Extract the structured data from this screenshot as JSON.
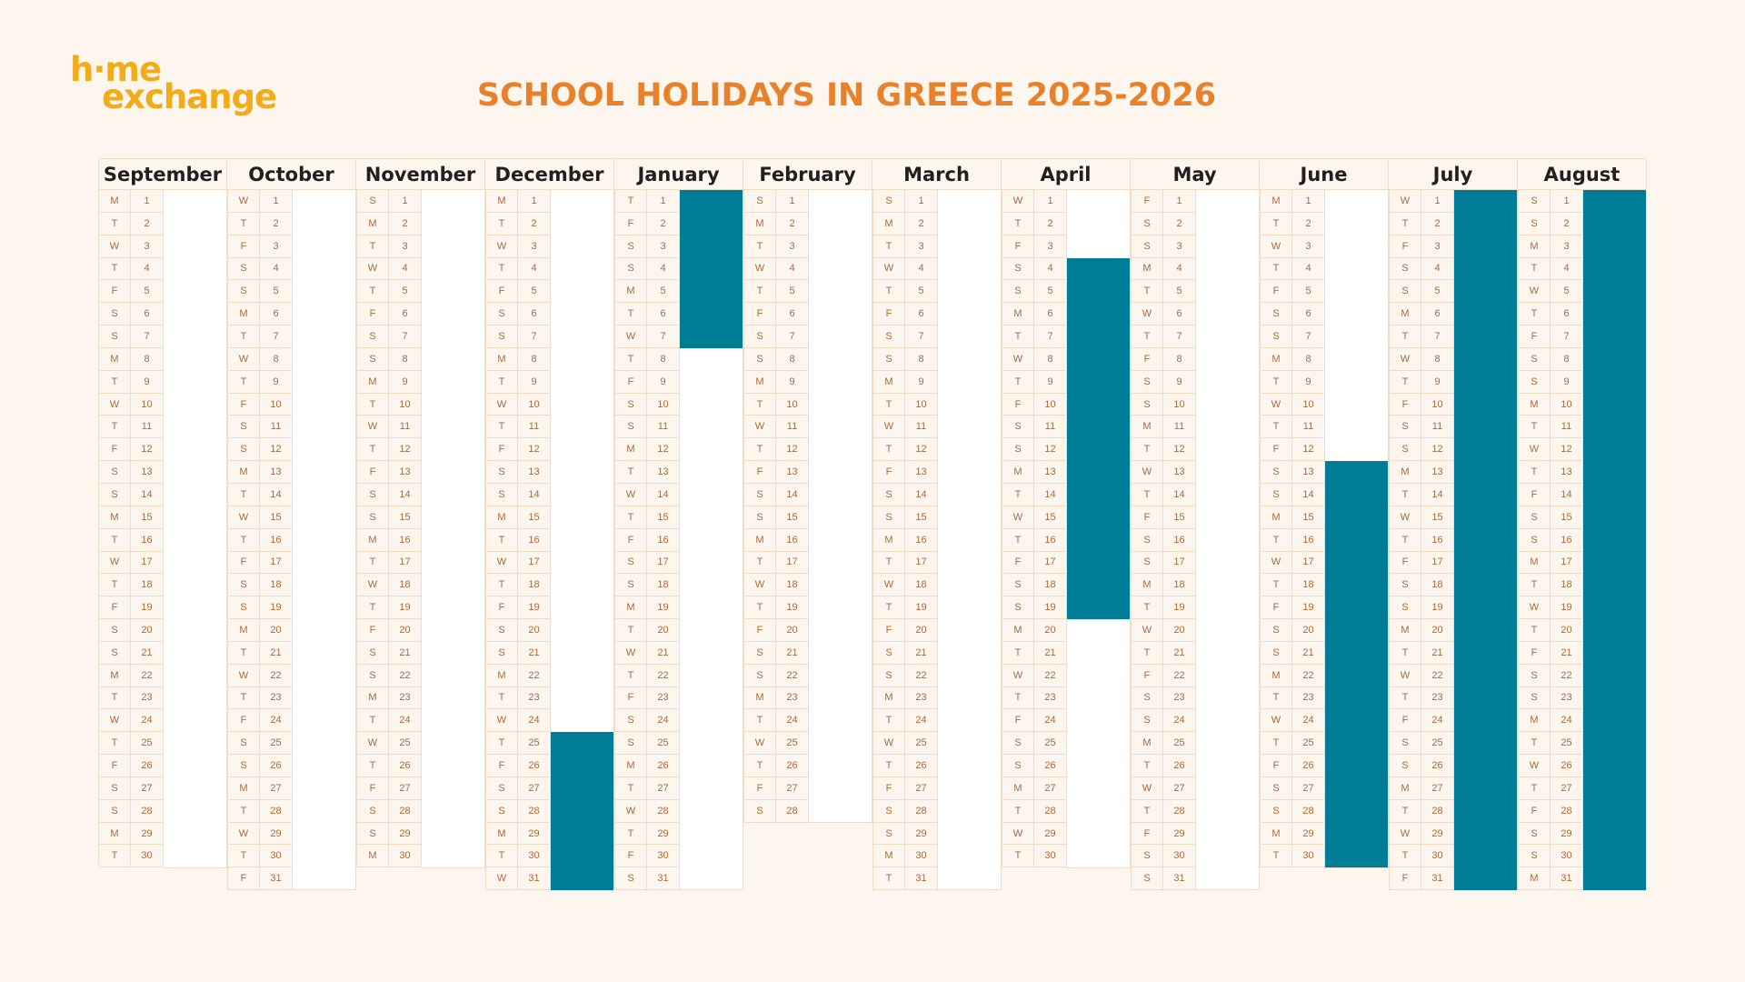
{
  "logo": {
    "line1": "h·me",
    "line2": "exchange",
    "color": "#f2ab1a"
  },
  "title": "SCHOOL HOLIDAYS IN GREECE 2025-2026",
  "colors": {
    "title": "#e9812a",
    "holiday": "#007d96",
    "background": "#fdf6ef",
    "grid": "#f3dcc3",
    "cell_text": "#a86a3c"
  },
  "months": [
    {
      "name": "September",
      "first_weekday": "M",
      "days": 30,
      "holidays": []
    },
    {
      "name": "October",
      "first_weekday": "W",
      "days": 31,
      "holidays": []
    },
    {
      "name": "November",
      "first_weekday": "S2",
      "days": 30,
      "holidays": []
    },
    {
      "name": "December",
      "first_weekday": "M",
      "days": 31,
      "holidays": [
        [
          25,
          31
        ]
      ]
    },
    {
      "name": "January",
      "first_weekday": "T2",
      "days": 31,
      "holidays": [
        [
          1,
          7
        ]
      ]
    },
    {
      "name": "February",
      "first_weekday": "S2",
      "days": 28,
      "holidays": []
    },
    {
      "name": "March",
      "first_weekday": "S2",
      "days": 31,
      "holidays": []
    },
    {
      "name": "April",
      "first_weekday": "W",
      "days": 30,
      "holidays": [
        [
          4,
          19
        ]
      ]
    },
    {
      "name": "May",
      "first_weekday": "F",
      "days": 31,
      "holidays": []
    },
    {
      "name": "June",
      "first_weekday": "M",
      "days": 30,
      "holidays": [
        [
          13,
          30
        ]
      ]
    },
    {
      "name": "July",
      "first_weekday": "W",
      "days": 31,
      "holidays": [
        [
          1,
          31
        ]
      ]
    },
    {
      "name": "August",
      "first_weekday": "S1",
      "days": 31,
      "holidays": [
        [
          1,
          31
        ]
      ]
    }
  ],
  "weekday_cycle": [
    "M",
    "T",
    "W",
    "T",
    "F",
    "S",
    "S"
  ]
}
